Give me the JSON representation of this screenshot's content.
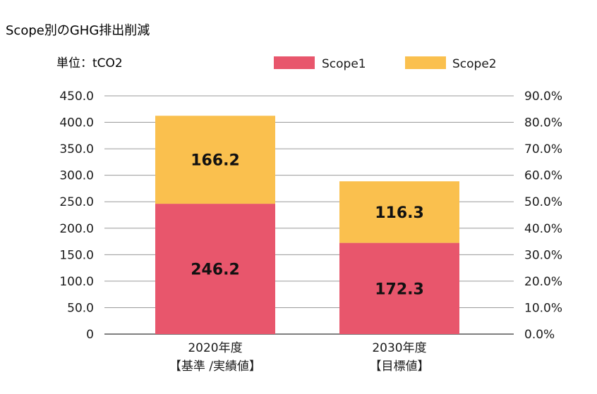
{
  "chart_data": {
    "type": "bar",
    "stacked": true,
    "title": "Scope別のGHG排出削減",
    "unit_label": "単位：tCO2",
    "categories": [
      [
        "2020年度",
        "【基準 /実績値】"
      ],
      [
        "2030年度",
        "【目標値】"
      ]
    ],
    "series": [
      {
        "name": "Scope1",
        "color": "#E8566C",
        "values": [
          246.2,
          172.3
        ],
        "labels": [
          "246.2",
          "172.3"
        ]
      },
      {
        "name": "Scope2",
        "color": "#FAC04E",
        "values": [
          166.2,
          116.3
        ],
        "labels": [
          "166.2",
          "116.3"
        ]
      }
    ],
    "ylim": [
      0,
      450
    ],
    "yticks": [
      "0",
      "50.0",
      "100.0",
      "150.0",
      "200.0",
      "250.0",
      "300.0",
      "350.0",
      "400.0",
      "450.0"
    ],
    "y2lim": [
      0,
      90
    ],
    "y2ticks": [
      "0.0%",
      "10.0%",
      "20.0%",
      "30.0%",
      "40.0%",
      "50.0%",
      "60.0%",
      "70.0%",
      "80.0%",
      "90.0%"
    ],
    "grid": true,
    "legend_position": "top-right"
  }
}
